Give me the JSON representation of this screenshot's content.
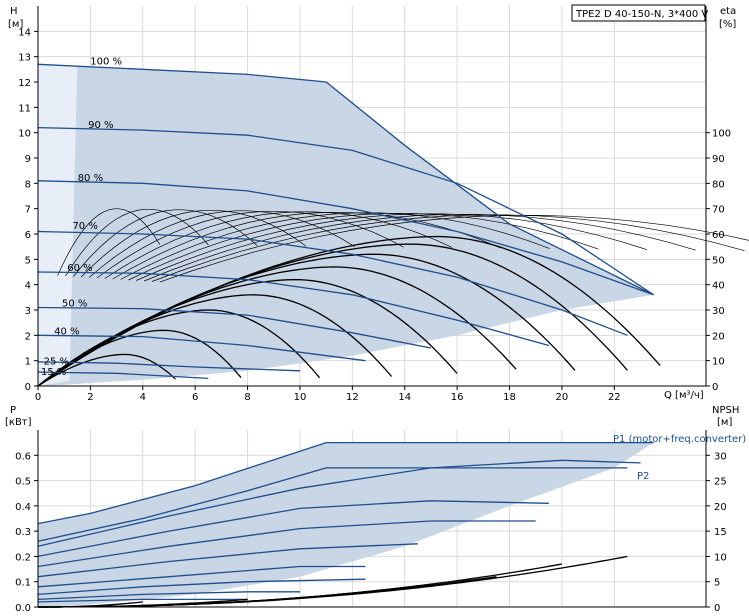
{
  "chart_data": [
    {
      "type": "line",
      "title": "TPE2 D 40-150-N, 3*400 V",
      "ylabel_left": "H",
      "ylabel_left_unit": "[м]",
      "ylabel_right": "eta",
      "ylabel_right_unit": "[%]",
      "xlabel": "Q [м³/ч]",
      "xlim": [
        0,
        25.5
      ],
      "ylim": [
        0,
        15
      ],
      "x_ticks": [
        "0",
        "2",
        "4",
        "6",
        "8",
        "10",
        "12",
        "14",
        "16",
        "18",
        "20",
        "22"
      ],
      "y_left_ticks": [
        "0",
        "1",
        "2",
        "3",
        "4",
        "5",
        "6",
        "7",
        "8",
        "9",
        "10",
        "11",
        "12",
        "13",
        "14"
      ],
      "y_right_ticks": [
        "0",
        "10",
        "20",
        "30",
        "40",
        "50",
        "60",
        "70",
        "80",
        "90",
        "100"
      ],
      "speed_labels": [
        "100 %",
        "90 %",
        "80 %",
        "70 %",
        "60 %",
        "50 %",
        "40 %",
        "25 %",
        "15 %"
      ],
      "grid": true,
      "series": [
        {
          "speed": 1.0,
          "x": [
            0,
            4,
            8,
            11,
            14,
            18,
            23.5
          ],
          "y": [
            12.7,
            12.5,
            12.3,
            12.0,
            9.5,
            6.4,
            3.6
          ]
        },
        {
          "speed": 0.9,
          "x": [
            0,
            4,
            8,
            12,
            16,
            20,
            23.5
          ],
          "y": [
            10.2,
            10.1,
            9.9,
            9.3,
            8.0,
            6.0,
            3.6
          ]
        },
        {
          "speed": 0.8,
          "x": [
            0,
            4,
            8,
            12,
            16,
            20,
            23.5
          ],
          "y": [
            8.1,
            8.0,
            7.7,
            7.0,
            6.1,
            4.9,
            3.6
          ]
        },
        {
          "speed": 0.7,
          "x": [
            0,
            4,
            8,
            12,
            16,
            20,
            22.5
          ],
          "y": [
            6.1,
            6.0,
            5.8,
            5.2,
            4.3,
            3.0,
            2.0
          ]
        },
        {
          "speed": 0.6,
          "x": [
            0,
            4,
            8,
            12,
            16,
            19.5
          ],
          "y": [
            4.5,
            4.45,
            4.2,
            3.6,
            2.6,
            1.6
          ]
        },
        {
          "speed": 0.5,
          "x": [
            0,
            4,
            8,
            12,
            15
          ],
          "y": [
            3.1,
            3.05,
            2.8,
            2.1,
            1.5
          ]
        },
        {
          "speed": 0.4,
          "x": [
            0,
            4,
            8,
            12.5
          ],
          "y": [
            2.0,
            1.95,
            1.6,
            1.0
          ]
        },
        {
          "speed": 0.25,
          "x": [
            0,
            3,
            6,
            10
          ],
          "y": [
            0.95,
            0.9,
            0.75,
            0.6
          ]
        },
        {
          "speed": 0.15,
          "x": [
            0,
            3,
            6.5
          ],
          "y": [
            0.55,
            0.5,
            0.3
          ]
        }
      ]
    },
    {
      "type": "line",
      "ylabel_left": "P",
      "ylabel_left_unit": "[кВт]",
      "ylabel_right": "NPSH",
      "ylabel_right_unit": "[м]",
      "xlim": [
        0,
        25.5
      ],
      "ylim": [
        0,
        0.7
      ],
      "y_left_ticks": [
        "0.0",
        "0.1",
        "0.2",
        "0.3",
        "0.4",
        "0.5",
        "0.6"
      ],
      "y_right_ticks": [
        "0",
        "5",
        "10",
        "15",
        "20",
        "25",
        "30"
      ],
      "grid": true,
      "series_labels": [
        "P1 (motor+freq.converter)",
        "P2"
      ],
      "series": [
        {
          "name": "P1 (motor+freq.converter)",
          "x": [
            0,
            2,
            6,
            11,
            23.5
          ],
          "y": [
            0.33,
            0.37,
            0.48,
            0.65,
            0.65
          ]
        },
        {
          "name": "P2",
          "x": [
            0,
            4,
            8,
            11,
            22.5
          ],
          "y": [
            0.26,
            0.35,
            0.46,
            0.55,
            0.55
          ]
        },
        {
          "x": [
            0,
            5,
            10,
            15,
            20,
            23
          ],
          "y": [
            0.24,
            0.36,
            0.47,
            0.55,
            0.58,
            0.57
          ]
        },
        {
          "x": [
            0,
            5,
            10,
            15,
            19.5
          ],
          "y": [
            0.2,
            0.3,
            0.39,
            0.42,
            0.41
          ]
        },
        {
          "x": [
            0,
            5,
            10,
            15,
            19
          ],
          "y": [
            0.16,
            0.24,
            0.31,
            0.34,
            0.34
          ]
        },
        {
          "x": [
            0,
            5,
            10,
            14.5
          ],
          "y": [
            0.12,
            0.18,
            0.23,
            0.25
          ]
        },
        {
          "x": [
            0,
            5,
            10,
            12.5
          ],
          "y": [
            0.08,
            0.12,
            0.16,
            0.16
          ]
        },
        {
          "x": [
            0,
            4,
            8,
            12.5
          ],
          "y": [
            0.05,
            0.08,
            0.1,
            0.11
          ]
        },
        {
          "x": [
            0,
            4,
            8,
            10
          ],
          "y": [
            0.03,
            0.05,
            0.06,
            0.06
          ]
        },
        {
          "x": [
            0,
            4,
            8
          ],
          "y": [
            0.02,
            0.03,
            0.03
          ]
        }
      ]
    }
  ]
}
